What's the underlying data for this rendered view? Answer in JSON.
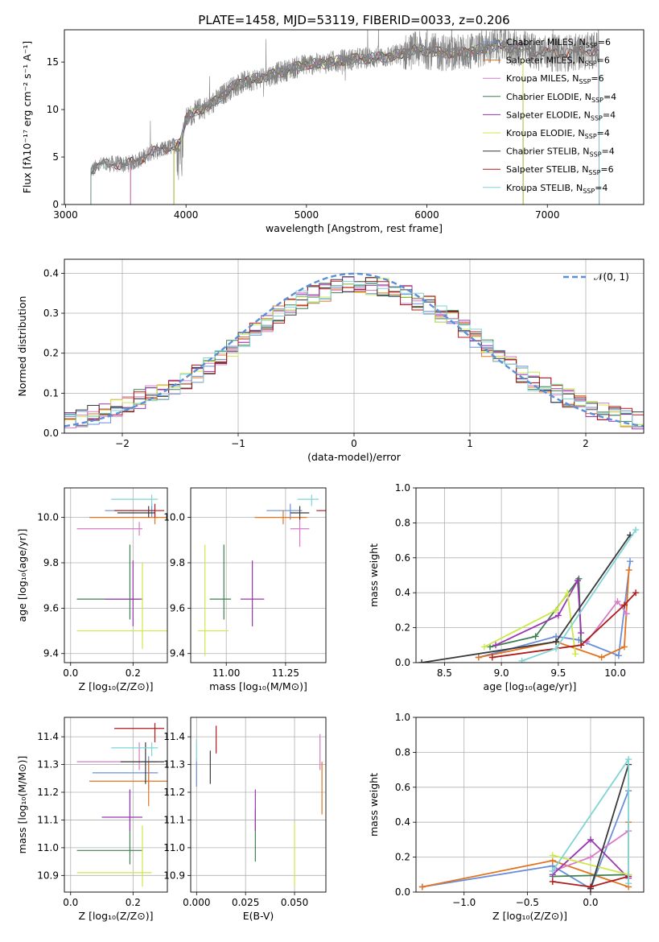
{
  "figure": {
    "title": "PLATE=1458, MJD=53119, FIBERID=0033, z=0.206"
  },
  "model_colors": [
    "#6a8fd8",
    "#e2731f",
    "#d67cc8",
    "#3f7f4f",
    "#9a36b0",
    "#cde84a",
    "#3a3a3a",
    "#b01a1a",
    "#7fd4d6"
  ],
  "chart_data": [
    {
      "id": "spectrum",
      "type": "line",
      "title": "PLATE=1458, MJD=53119, FIBERID=0033, z=0.206",
      "xlabel": "wavelength [Angstrom, rest frame]",
      "ylabel": "Flux [fλ10⁻¹⁷ erg cm⁻² s⁻¹ A⁻¹]",
      "xlim": [
        2990,
        7800
      ],
      "ylim": [
        0,
        18.4
      ],
      "xticks": [
        3000,
        4000,
        5000,
        6000,
        7000
      ],
      "yticks": [
        0,
        5,
        10,
        15
      ],
      "grid": false,
      "legend_position": "top-right",
      "data_color": "#808080",
      "continuum": {
        "x": [
          3200,
          3300,
          3400,
          3500,
          3600,
          3700,
          3800,
          3900,
          3950,
          4000,
          4100,
          4200,
          4300,
          4400,
          4500,
          4600,
          4700,
          4800,
          4900,
          5000,
          5100,
          5200,
          5300,
          5400,
          5500,
          5600,
          5700,
          5800,
          5900,
          6000,
          6100,
          6200,
          6300,
          6400,
          6500,
          6600,
          6700,
          6800,
          6900,
          7000,
          7100,
          7200,
          7300,
          7400,
          7430
        ],
        "y": [
          3.5,
          4.2,
          4.3,
          4.2,
          4.6,
          5.5,
          5.7,
          6.2,
          6.5,
          9.0,
          10.0,
          10.4,
          11.5,
          12.5,
          13.0,
          13.3,
          13.6,
          14.0,
          14.4,
          14.8,
          14.8,
          15.0,
          15.2,
          15.3,
          15.4,
          15.5,
          15.6,
          15.9,
          16.3,
          16.2,
          16.0,
          16.0,
          16.0,
          16.2,
          16.5,
          16.8,
          16.5,
          16.4,
          16.1,
          16.0,
          15.9,
          16.0,
          16.1,
          16.3,
          16.3
        ]
      },
      "series": [
        {
          "name": "Chabrier MILES, N_SSP=6",
          "start": 3540,
          "end": 7430
        },
        {
          "name": "Salpeter MILES, N_SSP=6",
          "start": 3540,
          "end": 7430
        },
        {
          "name": "Kroupa MILES, N_SSP=6",
          "start": 3540,
          "end": 7430
        },
        {
          "name": "Chabrier ELODIE, N_SSP=4",
          "start": 3900,
          "end": 6800
        },
        {
          "name": "Salpeter ELODIE, N_SSP=4",
          "start": 3900,
          "end": 6800
        },
        {
          "name": "Kroupa ELODIE, N_SSP=4",
          "start": 3900,
          "end": 6800
        },
        {
          "name": "Chabrier STELIB, N_SSP=4",
          "start": 3210,
          "end": 7430
        },
        {
          "name": "Salpeter STELIB, N_SSP=6",
          "start": 3210,
          "end": 7430
        },
        {
          "name": "Kroupa STELIB, N_SSP=4",
          "start": 3210,
          "end": 7430
        }
      ]
    },
    {
      "id": "residuals",
      "type": "line",
      "xlabel": "(data-model)/error",
      "ylabel": "Normed distribution",
      "xlim": [
        -2.5,
        2.5
      ],
      "ylim": [
        0,
        0.435
      ],
      "xticks": [
        -2,
        -1,
        0,
        1,
        2
      ],
      "yticks": [
        0.0,
        0.1,
        0.2,
        0.3,
        0.4
      ],
      "grid": true,
      "legend_position": "top-right",
      "reference": {
        "name": "𝒩(0, 1)",
        "mean": 0,
        "sigma": 1,
        "color": "#5b8fd8"
      },
      "bins": [
        -2.5,
        -2.4,
        -2.3,
        -2.2,
        -2.1,
        -2.0,
        -1.9,
        -1.8,
        -1.7,
        -1.6,
        -1.5,
        -1.4,
        -1.3,
        -1.2,
        -1.1,
        -1.0,
        -0.9,
        -0.8,
        -0.7,
        -0.6,
        -0.5,
        -0.4,
        -0.3,
        -0.2,
        -0.1,
        0.0,
        0.1,
        0.2,
        0.3,
        0.4,
        0.5,
        0.6,
        0.7,
        0.8,
        0.9,
        1.0,
        1.1,
        1.2,
        1.3,
        1.4,
        1.5,
        1.6,
        1.7,
        1.8,
        1.9,
        2.0,
        2.1,
        2.2,
        2.3,
        2.4,
        2.5
      ],
      "histogram_base": [
        0.035,
        0.04,
        0.045,
        0.05,
        0.062,
        0.075,
        0.085,
        0.095,
        0.105,
        0.118,
        0.132,
        0.15,
        0.17,
        0.185,
        0.21,
        0.23,
        0.255,
        0.275,
        0.3,
        0.318,
        0.335,
        0.348,
        0.355,
        0.362,
        0.368,
        0.372,
        0.368,
        0.362,
        0.355,
        0.345,
        0.333,
        0.32,
        0.302,
        0.285,
        0.262,
        0.24,
        0.215,
        0.19,
        0.17,
        0.15,
        0.13,
        0.115,
        0.1,
        0.088,
        0.075,
        0.065,
        0.055,
        0.048,
        0.04,
        0.035
      ]
    },
    {
      "id": "age-vs-Z",
      "type": "scatter",
      "xlabel": "Z [log₁₀(Z/Z⊙)]",
      "ylabel": "age  [log₁₀(age/yr)]",
      "xlim": [
        -0.02,
        0.31
      ],
      "ylim": [
        9.36,
        10.13
      ],
      "xticks": [
        0.0,
        0.2
      ],
      "yticks": [
        9.4,
        9.6,
        9.8,
        10.0
      ],
      "grid": true,
      "points": [
        {
          "model": 0,
          "x": 0.26,
          "xerr": [
            0.15,
            0.01
          ],
          "y": 10.03,
          "yerr": [
            0.03,
            0.03
          ]
        },
        {
          "model": 1,
          "x": 0.27,
          "xerr": [
            0.21,
            0.08
          ],
          "y": 10.0,
          "yerr": [
            0.03,
            0.03
          ]
        },
        {
          "model": 2,
          "x": 0.22,
          "xerr": [
            0.2,
            0.01
          ],
          "y": 9.95,
          "yerr": [
            0.03,
            0.03
          ]
        },
        {
          "model": 3,
          "x": 0.19,
          "xerr": [
            0.17,
            0.03
          ],
          "y": 9.64,
          "yerr": [
            0.09,
            0.24
          ]
        },
        {
          "model": 4,
          "x": 0.2,
          "xerr": [
            0.09,
            0.03
          ],
          "y": 9.64,
          "yerr": [
            0.12,
            0.17
          ]
        },
        {
          "model": 5,
          "x": 0.23,
          "xerr": [
            0.21,
            0.08
          ],
          "y": 9.5,
          "yerr": [
            0.08,
            0.3
          ]
        },
        {
          "model": 6,
          "x": 0.25,
          "xerr": [
            0.1,
            0.02
          ],
          "y": 10.02,
          "yerr": [
            0.02,
            0.03
          ]
        },
        {
          "model": 7,
          "x": 0.27,
          "xerr": [
            0.13,
            0.03
          ],
          "y": 10.03,
          "yerr": [
            0.03,
            0.03
          ]
        },
        {
          "model": 8,
          "x": 0.26,
          "xerr": [
            0.13,
            0.02
          ],
          "y": 10.08,
          "yerr": [
            0.03,
            0.02
          ]
        }
      ]
    },
    {
      "id": "age-vs-mass",
      "type": "scatter",
      "xlabel": "mass [log₁₀(M/M⊙)]",
      "ylabel": "",
      "xlim": [
        10.85,
        11.42
      ],
      "ylim": [
        9.36,
        10.13
      ],
      "xticks": [
        11.0,
        11.25
      ],
      "yticks": [
        9.4,
        9.6,
        9.8,
        10.0
      ],
      "grid": true,
      "points": [
        {
          "model": 0,
          "x": 11.27,
          "xerr": [
            0.1,
            0.05
          ],
          "y": 10.03,
          "yerr": [
            0.04,
            0.03
          ]
        },
        {
          "model": 1,
          "x": 11.24,
          "xerr": [
            0.12,
            0.1
          ],
          "y": 10.0,
          "yerr": [
            0.03,
            0.03
          ]
        },
        {
          "model": 2,
          "x": 11.31,
          "xerr": [
            0.04,
            0.04
          ],
          "y": 9.95,
          "yerr": [
            0.08,
            0.04
          ]
        },
        {
          "model": 3,
          "x": 10.99,
          "xerr": [
            0.06,
            0.03
          ],
          "y": 9.64,
          "yerr": [
            0.09,
            0.24
          ]
        },
        {
          "model": 4,
          "x": 11.11,
          "xerr": [
            0.05,
            0.05
          ],
          "y": 9.64,
          "yerr": [
            0.12,
            0.17
          ]
        },
        {
          "model": 5,
          "x": 10.91,
          "xerr": [
            0.03,
            0.1
          ],
          "y": 9.5,
          "yerr": [
            0.11,
            0.38
          ]
        },
        {
          "model": 6,
          "x": 11.31,
          "xerr": [
            0.04,
            0.04
          ],
          "y": 10.02,
          "yerr": [
            0.03,
            0.03
          ]
        },
        {
          "model": 7,
          "x": 11.43,
          "xerr": [
            0.05,
            0.02
          ],
          "y": 10.03,
          "yerr": [
            0.11,
            0.03
          ]
        },
        {
          "model": 8,
          "x": 11.36,
          "xerr": [
            0.06,
            0.03
          ],
          "y": 10.08,
          "yerr": [
            0.03,
            0.02
          ]
        }
      ]
    },
    {
      "id": "mass-weight-vs-age",
      "type": "line",
      "xlabel": "age  [log₁₀(age/yr)]",
      "ylabel": "mass weight",
      "xlim": [
        8.25,
        10.25
      ],
      "ylim": [
        0.0,
        1.0
      ],
      "xticks": [
        8.5,
        9.0,
        9.5,
        10.0
      ],
      "yticks": [
        0.0,
        0.2,
        0.4,
        0.6,
        0.8,
        1.0
      ],
      "grid": true,
      "series": [
        {
          "model": 0,
          "x": [
            8.8,
            9.48,
            9.68,
            10.03,
            10.13
          ],
          "y": [
            0.03,
            0.15,
            0.13,
            0.04,
            0.58
          ]
        },
        {
          "model": 1,
          "x": [
            8.8,
            9.48,
            9.88,
            10.08,
            10.12
          ],
          "y": [
            0.03,
            0.12,
            0.03,
            0.09,
            0.53
          ]
        },
        {
          "model": 2,
          "x": [
            9.75,
            10.02,
            10.1
          ],
          "y": [
            0.12,
            0.35,
            0.28
          ]
        },
        {
          "model": 3,
          "x": [
            8.9,
            9.3,
            9.68,
            9.7
          ],
          "y": [
            0.09,
            0.15,
            0.48,
            0.1
          ]
        },
        {
          "model": 4,
          "x": [
            8.95,
            9.5,
            9.67,
            9.7
          ],
          "y": [
            0.1,
            0.27,
            0.47,
            0.17
          ]
        },
        {
          "model": 5,
          "x": [
            8.85,
            9.48,
            9.58,
            9.65
          ],
          "y": [
            0.09,
            0.3,
            0.4,
            0.05
          ]
        },
        {
          "model": 6,
          "x": [
            8.3,
            9.48,
            10.13
          ],
          "y": [
            0.0,
            0.12,
            0.73
          ]
        },
        {
          "model": 7,
          "x": [
            8.92,
            9.7,
            10.08,
            10.18
          ],
          "y": [
            0.03,
            0.1,
            0.33,
            0.4
          ]
        },
        {
          "model": 8,
          "x": [
            9.18,
            9.48,
            10.18
          ],
          "y": [
            0.01,
            0.08,
            0.76
          ]
        }
      ]
    },
    {
      "id": "mass-vs-Z",
      "type": "scatter",
      "xlabel": "Z [log₁₀(Z/Z⊙)]",
      "ylabel": "mass [log₁₀(M/M⊙)]",
      "xlim": [
        -0.02,
        0.31
      ],
      "ylim": [
        10.84,
        11.47
      ],
      "xticks": [
        0.0,
        0.2
      ],
      "yticks": [
        10.9,
        11.0,
        11.1,
        11.2,
        11.3,
        11.4
      ],
      "grid": true,
      "points": [
        {
          "model": 0,
          "x": 0.25,
          "xerr": [
            0.18,
            0.03
          ],
          "y": 11.27,
          "yerr": [
            0.06,
            0.06
          ]
        },
        {
          "model": 1,
          "x": 0.25,
          "xerr": [
            0.19,
            0.06
          ],
          "y": 11.24,
          "yerr": [
            0.09,
            0.07
          ]
        },
        {
          "model": 2,
          "x": 0.22,
          "xerr": [
            0.2,
            0.06
          ],
          "y": 11.31,
          "yerr": [
            0.03,
            0.07
          ]
        },
        {
          "model": 3,
          "x": 0.19,
          "xerr": [
            0.17,
            0.04
          ],
          "y": 10.99,
          "yerr": [
            0.05,
            0.22
          ]
        },
        {
          "model": 4,
          "x": 0.19,
          "xerr": [
            0.09,
            0.04
          ],
          "y": 11.11,
          "yerr": [
            0.05,
            0.1
          ]
        },
        {
          "model": 5,
          "x": 0.23,
          "xerr": [
            0.21,
            0.03
          ],
          "y": 10.91,
          "yerr": [
            0.05,
            0.17
          ]
        },
        {
          "model": 6,
          "x": 0.24,
          "xerr": [
            0.08,
            0.06
          ],
          "y": 11.31,
          "yerr": [
            0.08,
            0.07
          ]
        },
        {
          "model": 7,
          "x": 0.27,
          "xerr": [
            0.13,
            0.03
          ],
          "y": 11.43,
          "yerr": [
            0.05,
            0.02
          ]
        },
        {
          "model": 8,
          "x": 0.26,
          "xerr": [
            0.13,
            0.02
          ],
          "y": 11.36,
          "yerr": [
            0.03,
            0.02
          ]
        }
      ]
    },
    {
      "id": "mass-vs-EBV",
      "type": "scatter",
      "xlabel": "E(B-V)",
      "ylabel": "",
      "xlim": [
        -0.003,
        0.066
      ],
      "ylim": [
        10.84,
        11.47
      ],
      "xticks": [
        0.0,
        0.025,
        0.05
      ],
      "yticks": [
        10.9,
        11.0,
        11.1,
        11.2,
        11.3,
        11.4
      ],
      "grid": true,
      "points": [
        {
          "model": 0,
          "x": 0.0,
          "y": 11.27,
          "yerr": [
            0.05,
            0.05
          ]
        },
        {
          "model": 1,
          "x": 0.064,
          "y": 11.25,
          "yerr": [
            0.13,
            0.06
          ]
        },
        {
          "model": 2,
          "x": 0.063,
          "y": 11.31,
          "yerr": [
            0.03,
            0.1
          ]
        },
        {
          "model": 3,
          "x": 0.03,
          "y": 11.02,
          "yerr": [
            0.07,
            0.12
          ]
        },
        {
          "model": 4,
          "x": 0.03,
          "y": 11.11,
          "yerr": [
            0.05,
            0.1
          ]
        },
        {
          "model": 5,
          "x": 0.05,
          "y": 10.93,
          "yerr": [
            0.07,
            0.16
          ]
        },
        {
          "model": 6,
          "x": 0.007,
          "y": 11.29,
          "yerr": [
            0.06,
            0.06
          ]
        },
        {
          "model": 7,
          "x": 0.01,
          "y": 11.39,
          "yerr": [
            0.05,
            0.05
          ]
        },
        {
          "model": 8,
          "x": 0.0,
          "y": 11.35,
          "yerr": [
            0.04,
            0.04
          ]
        }
      ]
    },
    {
      "id": "mass-weight-vs-Z",
      "type": "line",
      "xlabel": "Z [log₁₀(Z/Z⊙)]",
      "ylabel": "mass weight",
      "xlim": [
        -1.38,
        0.42
      ],
      "ylim": [
        0.0,
        1.0
      ],
      "xticks": [
        -1.0,
        -0.5,
        0.0
      ],
      "yticks": [
        0.0,
        0.2,
        0.4,
        0.6,
        0.8,
        1.0
      ],
      "grid": true,
      "series": [
        {
          "model": 0,
          "x": [
            -1.33,
            -0.3,
            0.0,
            0.3
          ],
          "y": [
            0.03,
            0.15,
            0.02,
            0.58
          ]
        },
        {
          "model": 1,
          "x": [
            -1.33,
            -0.3,
            0.3,
            0.3
          ],
          "y": [
            0.03,
            0.18,
            0.03,
            0.4
          ]
        },
        {
          "model": 2,
          "x": [
            -0.3,
            0.0,
            0.3
          ],
          "y": [
            0.12,
            0.2,
            0.35
          ]
        },
        {
          "model": 3,
          "x": [
            -0.3,
            0.3
          ],
          "y": [
            0.09,
            0.1
          ]
        },
        {
          "model": 4,
          "x": [
            -0.3,
            0.0,
            0.3
          ],
          "y": [
            0.1,
            0.3,
            0.08
          ]
        },
        {
          "model": 5,
          "x": [
            -0.3,
            0.3
          ],
          "y": [
            0.21,
            0.1
          ]
        },
        {
          "model": 6,
          "x": [
            0.0,
            0.3
          ],
          "y": [
            0.02,
            0.73
          ]
        },
        {
          "model": 7,
          "x": [
            -0.3,
            0.0,
            0.3
          ],
          "y": [
            0.06,
            0.03,
            0.09
          ]
        },
        {
          "model": 8,
          "x": [
            -0.3,
            0.3,
            0.3
          ],
          "y": [
            0.12,
            0.76,
            0.05
          ]
        }
      ]
    }
  ]
}
